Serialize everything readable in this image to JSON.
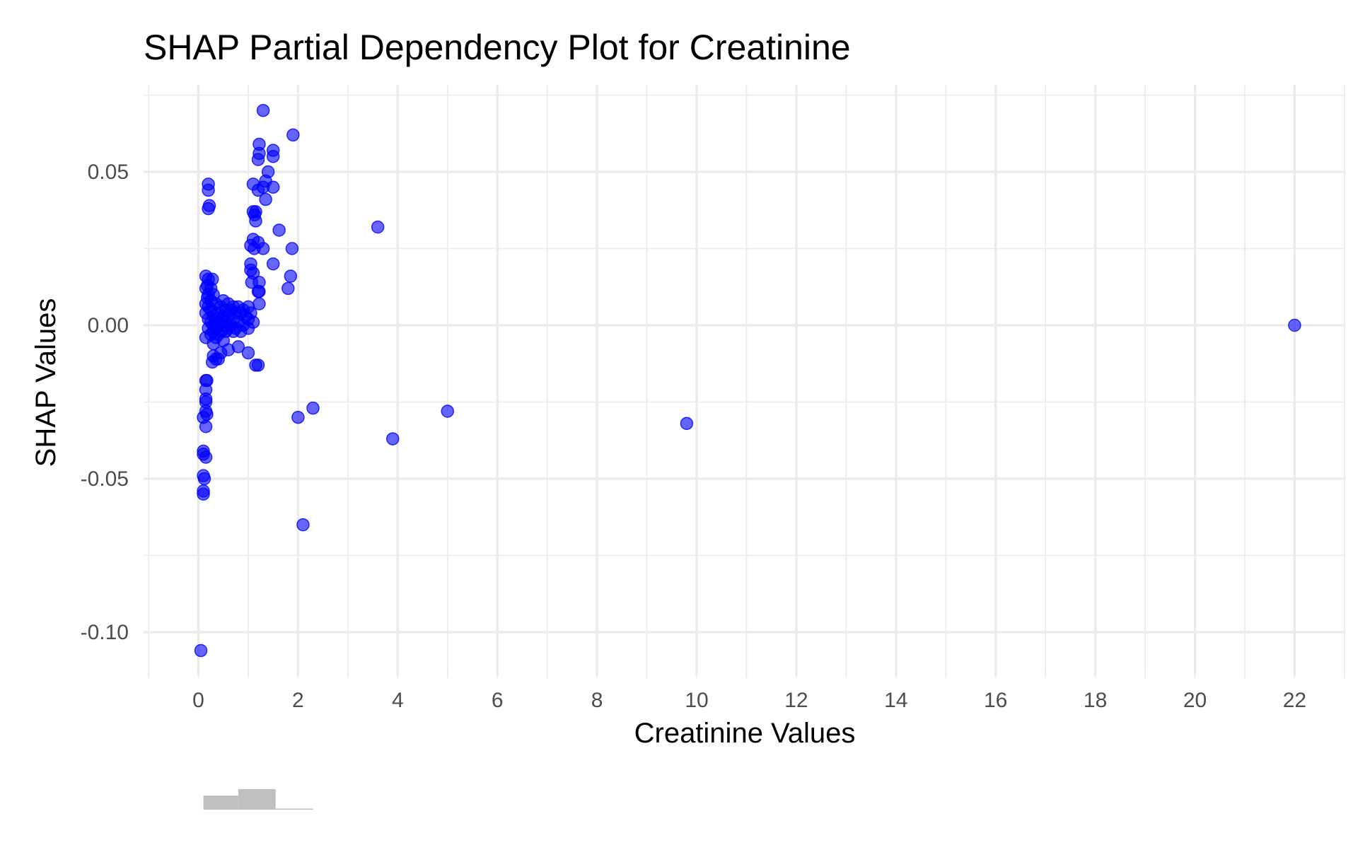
{
  "chart_data": {
    "type": "scatter",
    "title": "SHAP Partial Dependency Plot for Creatinine",
    "xlabel": "Creatinine Values",
    "ylabel": "SHAP Values",
    "xlim": [
      -1,
      23
    ],
    "ylim": [
      -0.115,
      0.077
    ],
    "x_ticks": [
      0,
      2,
      4,
      6,
      8,
      10,
      12,
      14,
      16,
      18,
      20,
      22
    ],
    "x_tick_labels": [
      "0",
      "2",
      "4",
      "6",
      "8",
      "10",
      "12",
      "14",
      "16",
      "18",
      "20",
      "22"
    ],
    "y_ticks": [
      -0.1,
      -0.05,
      0.0,
      0.05
    ],
    "y_tick_labels": [
      "-0.10",
      "-0.05",
      "0.00",
      "0.05"
    ],
    "grid": true,
    "point_color": "#0000ff",
    "point_alpha": 0.6,
    "points": [
      {
        "x": 1.3,
        "y": 0.07
      },
      {
        "x": 1.9,
        "y": 0.062
      },
      {
        "x": 1.22,
        "y": 0.059
      },
      {
        "x": 1.5,
        "y": 0.057
      },
      {
        "x": 1.22,
        "y": 0.056
      },
      {
        "x": 1.5,
        "y": 0.055
      },
      {
        "x": 1.2,
        "y": 0.054
      },
      {
        "x": 1.4,
        "y": 0.05
      },
      {
        "x": 1.35,
        "y": 0.047
      },
      {
        "x": 1.1,
        "y": 0.046
      },
      {
        "x": 0.2,
        "y": 0.046
      },
      {
        "x": 1.5,
        "y": 0.045
      },
      {
        "x": 1.3,
        "y": 0.045
      },
      {
        "x": 0.2,
        "y": 0.044
      },
      {
        "x": 1.2,
        "y": 0.044
      },
      {
        "x": 1.35,
        "y": 0.041
      },
      {
        "x": 0.22,
        "y": 0.039
      },
      {
        "x": 0.2,
        "y": 0.038
      },
      {
        "x": 1.1,
        "y": 0.037
      },
      {
        "x": 1.15,
        "y": 0.037
      },
      {
        "x": 1.13,
        "y": 0.036
      },
      {
        "x": 1.15,
        "y": 0.034
      },
      {
        "x": 3.6,
        "y": 0.032
      },
      {
        "x": 1.62,
        "y": 0.031
      },
      {
        "x": 1.1,
        "y": 0.028
      },
      {
        "x": 1.2,
        "y": 0.027
      },
      {
        "x": 1.05,
        "y": 0.026
      },
      {
        "x": 1.12,
        "y": 0.025
      },
      {
        "x": 1.3,
        "y": 0.025
      },
      {
        "x": 1.88,
        "y": 0.025
      },
      {
        "x": 1.05,
        "y": 0.02
      },
      {
        "x": 1.5,
        "y": 0.02
      },
      {
        "x": 1.05,
        "y": 0.018
      },
      {
        "x": 1.1,
        "y": 0.017
      },
      {
        "x": 1.85,
        "y": 0.016
      },
      {
        "x": 0.15,
        "y": 0.016
      },
      {
        "x": 0.2,
        "y": 0.015
      },
      {
        "x": 0.28,
        "y": 0.015
      },
      {
        "x": 1.07,
        "y": 0.014
      },
      {
        "x": 1.22,
        "y": 0.014
      },
      {
        "x": 0.18,
        "y": 0.013
      },
      {
        "x": 0.25,
        "y": 0.012
      },
      {
        "x": 1.8,
        "y": 0.012
      },
      {
        "x": 0.15,
        "y": 0.012
      },
      {
        "x": 1.2,
        "y": 0.011
      },
      {
        "x": 1.22,
        "y": 0.011
      },
      {
        "x": 0.2,
        "y": 0.01
      },
      {
        "x": 0.3,
        "y": 0.01
      },
      {
        "x": 0.18,
        "y": 0.009
      },
      {
        "x": 0.25,
        "y": 0.008
      },
      {
        "x": 0.5,
        "y": 0.008
      },
      {
        "x": 0.15,
        "y": 0.007
      },
      {
        "x": 0.35,
        "y": 0.007
      },
      {
        "x": 1.22,
        "y": 0.007
      },
      {
        "x": 0.6,
        "y": 0.007
      },
      {
        "x": 0.7,
        "y": 0.006
      },
      {
        "x": 0.2,
        "y": 0.006
      },
      {
        "x": 0.45,
        "y": 0.006
      },
      {
        "x": 0.8,
        "y": 0.006
      },
      {
        "x": 1.0,
        "y": 0.006
      },
      {
        "x": 0.25,
        "y": 0.005
      },
      {
        "x": 0.55,
        "y": 0.005
      },
      {
        "x": 0.65,
        "y": 0.005
      },
      {
        "x": 0.9,
        "y": 0.005
      },
      {
        "x": 0.15,
        "y": 0.004
      },
      {
        "x": 0.4,
        "y": 0.004
      },
      {
        "x": 0.75,
        "y": 0.004
      },
      {
        "x": 0.85,
        "y": 0.004
      },
      {
        "x": 1.05,
        "y": 0.004
      },
      {
        "x": 0.3,
        "y": 0.003
      },
      {
        "x": 0.5,
        "y": 0.003
      },
      {
        "x": 0.6,
        "y": 0.003
      },
      {
        "x": 0.95,
        "y": 0.003
      },
      {
        "x": 0.2,
        "y": 0.002
      },
      {
        "x": 0.35,
        "y": 0.002
      },
      {
        "x": 0.7,
        "y": 0.002
      },
      {
        "x": 1.0,
        "y": 0.002
      },
      {
        "x": 0.45,
        "y": 0.002
      },
      {
        "x": 0.25,
        "y": 0.001
      },
      {
        "x": 0.55,
        "y": 0.001
      },
      {
        "x": 0.8,
        "y": 0.001
      },
      {
        "x": 1.1,
        "y": 0.001
      },
      {
        "x": 0.4,
        "y": 0.001
      },
      {
        "x": 0.3,
        "y": 0.0
      },
      {
        "x": 0.5,
        "y": 0.0
      },
      {
        "x": 0.65,
        "y": 0.0
      },
      {
        "x": 0.9,
        "y": 0.0
      },
      {
        "x": 0.2,
        "y": -0.001
      },
      {
        "x": 0.35,
        "y": -0.001
      },
      {
        "x": 0.6,
        "y": -0.001
      },
      {
        "x": 0.75,
        "y": -0.001
      },
      {
        "x": 1.0,
        "y": -0.001
      },
      {
        "x": 0.45,
        "y": -0.002
      },
      {
        "x": 0.3,
        "y": -0.002
      },
      {
        "x": 0.55,
        "y": -0.002
      },
      {
        "x": 0.85,
        "y": -0.002
      },
      {
        "x": 0.4,
        "y": -0.003
      },
      {
        "x": 0.7,
        "y": -0.002
      },
      {
        "x": 0.25,
        "y": -0.003
      },
      {
        "x": 0.15,
        "y": -0.004
      },
      {
        "x": 0.35,
        "y": -0.004
      },
      {
        "x": 0.5,
        "y": -0.005
      },
      {
        "x": 0.3,
        "y": -0.006
      },
      {
        "x": 0.6,
        "y": -0.008
      },
      {
        "x": 0.8,
        "y": -0.007
      },
      {
        "x": 0.45,
        "y": -0.009
      },
      {
        "x": 0.3,
        "y": -0.01
      },
      {
        "x": 0.35,
        "y": -0.011
      },
      {
        "x": 0.4,
        "y": -0.011
      },
      {
        "x": 0.28,
        "y": -0.012
      },
      {
        "x": 1.0,
        "y": -0.009
      },
      {
        "x": 1.2,
        "y": -0.013
      },
      {
        "x": 1.15,
        "y": -0.013
      },
      {
        "x": 0.15,
        "y": -0.018
      },
      {
        "x": 0.17,
        "y": -0.018
      },
      {
        "x": 0.15,
        "y": -0.021
      },
      {
        "x": 0.15,
        "y": -0.024
      },
      {
        "x": 0.15,
        "y": -0.025
      },
      {
        "x": 0.15,
        "y": -0.028
      },
      {
        "x": 0.17,
        "y": -0.029
      },
      {
        "x": 0.1,
        "y": -0.03
      },
      {
        "x": 0.15,
        "y": -0.033
      },
      {
        "x": 2.3,
        "y": -0.027
      },
      {
        "x": 5.0,
        "y": -0.028
      },
      {
        "x": 2.0,
        "y": -0.03
      },
      {
        "x": 9.8,
        "y": -0.032
      },
      {
        "x": 3.9,
        "y": -0.037
      },
      {
        "x": 0.1,
        "y": -0.041
      },
      {
        "x": 0.1,
        "y": -0.042
      },
      {
        "x": 0.15,
        "y": -0.043
      },
      {
        "x": 0.1,
        "y": -0.049
      },
      {
        "x": 0.12,
        "y": -0.05
      },
      {
        "x": 0.1,
        "y": -0.054
      },
      {
        "x": 0.1,
        "y": -0.055
      },
      {
        "x": 2.1,
        "y": -0.065
      },
      {
        "x": 0.05,
        "y": -0.106
      },
      {
        "x": 22.0,
        "y": 0.0
      }
    ],
    "marginal_histogram": {
      "bins": [
        {
          "x0": 0.1,
          "x1": 0.8,
          "count": 30
        },
        {
          "x0": 0.8,
          "x1": 1.55,
          "count": 44
        },
        {
          "x0": 1.55,
          "x1": 2.3,
          "count": 2
        }
      ],
      "color": "#bfbfbf"
    }
  }
}
